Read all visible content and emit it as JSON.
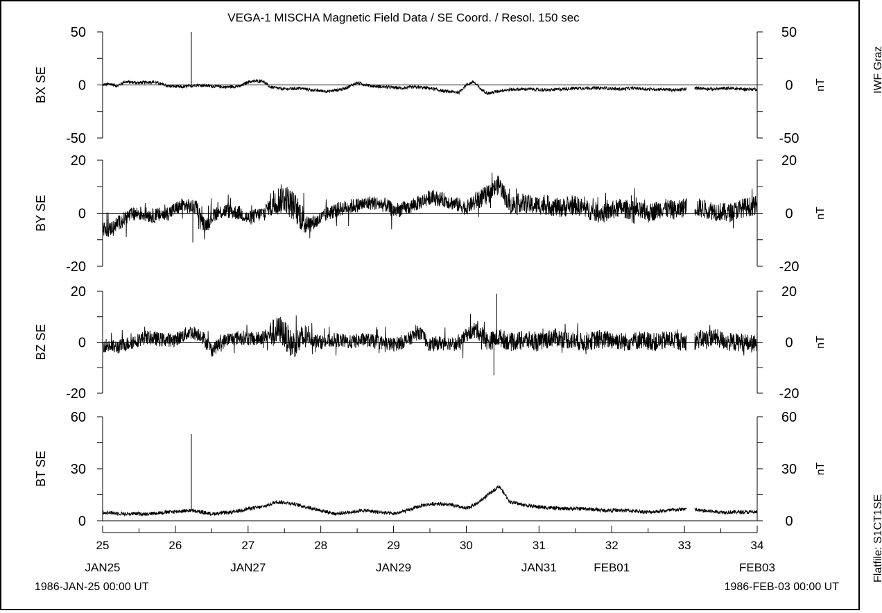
{
  "title": "VEGA-1 MISCHA Magnetic Field Data / SE Coord. / Resol. 150 sec",
  "side_label_top": "IWF Graz",
  "side_label_bottom": "Flatfile: S1CT1SE",
  "start_time": "1986-JAN-25 00:00  UT",
  "end_time": "1986-FEB-03 00:00  UT",
  "unit": "nT",
  "chart_data": {
    "type": "line",
    "title": "VEGA-1 MISCHA Magnetic Field Data / SE Coord. / Resol. 150 sec",
    "x": {
      "range": [
        25,
        34
      ],
      "ticks": [
        "25",
        "26",
        "27",
        "28",
        "29",
        "30",
        "31",
        "32",
        "33",
        "34"
      ],
      "date_labels": [
        {
          "day": 25,
          "label": "JAN25"
        },
        {
          "day": 27,
          "label": "JAN27"
        },
        {
          "day": 29,
          "label": "JAN29"
        },
        {
          "day": 31,
          "label": "JAN31"
        },
        {
          "day": 32,
          "label": "FEB01"
        },
        {
          "day": 34,
          "label": "FEB03"
        }
      ]
    },
    "panels": [
      {
        "name": "BX SE",
        "ylabel": "BX  SE",
        "unit": "nT",
        "ylim": [
          -50,
          50
        ],
        "ticks": [
          50,
          0,
          -50
        ],
        "tick_labels": [
          "50",
          "0",
          "-50"
        ],
        "minor_step": 25,
        "points": [
          [
            25.0,
            0
          ],
          [
            25.1,
            1
          ],
          [
            25.2,
            -1
          ],
          [
            25.3,
            3
          ],
          [
            25.5,
            2
          ],
          [
            25.7,
            3
          ],
          [
            25.9,
            -1
          ],
          [
            26.1,
            -2
          ],
          [
            26.3,
            0
          ],
          [
            26.5,
            -1
          ],
          [
            26.7,
            -2
          ],
          [
            26.9,
            -1
          ],
          [
            27.0,
            3
          ],
          [
            27.2,
            4
          ],
          [
            27.3,
            -2
          ],
          [
            27.5,
            -4
          ],
          [
            27.7,
            -3
          ],
          [
            27.9,
            -5
          ],
          [
            28.1,
            -6
          ],
          [
            28.3,
            -4
          ],
          [
            28.5,
            2
          ],
          [
            28.7,
            -1
          ],
          [
            28.9,
            -2
          ],
          [
            29.1,
            -3
          ],
          [
            29.3,
            -2
          ],
          [
            29.5,
            -3
          ],
          [
            29.7,
            -6
          ],
          [
            29.9,
            -7
          ],
          [
            30.0,
            0
          ],
          [
            30.1,
            3
          ],
          [
            30.2,
            -4
          ],
          [
            30.3,
            -8
          ],
          [
            30.5,
            -5
          ],
          [
            30.7,
            -4
          ],
          [
            30.9,
            -4
          ],
          [
            31.1,
            -5
          ],
          [
            31.3,
            -4
          ],
          [
            31.5,
            -3
          ],
          [
            31.7,
            -3
          ],
          [
            31.9,
            -3
          ],
          [
            32.1,
            -4
          ],
          [
            32.3,
            -3
          ],
          [
            32.5,
            -4
          ],
          [
            32.7,
            -4
          ],
          [
            32.9,
            -5
          ],
          [
            33.0,
            -4
          ],
          [
            33.2,
            -3
          ],
          [
            33.4,
            -4
          ],
          [
            33.6,
            -3
          ],
          [
            33.8,
            -4
          ],
          [
            34.0,
            -4
          ]
        ],
        "spikes": [
          [
            26.22,
            50
          ]
        ]
      },
      {
        "name": "BY SE",
        "ylabel": "BY  SE",
        "unit": "nT",
        "ylim": [
          -20,
          20
        ],
        "ticks": [
          20,
          0,
          -20
        ],
        "tick_labels": [
          "20",
          "0",
          "-20"
        ],
        "minor_step": 10,
        "points": [
          [
            25.0,
            -5
          ],
          [
            25.05,
            -7
          ],
          [
            25.2,
            -4
          ],
          [
            25.35,
            -1
          ],
          [
            25.5,
            0
          ],
          [
            25.7,
            -1
          ],
          [
            25.9,
            0
          ],
          [
            26.1,
            3
          ],
          [
            26.3,
            2
          ],
          [
            26.4,
            -5
          ],
          [
            26.55,
            0
          ],
          [
            26.7,
            1
          ],
          [
            26.9,
            0
          ],
          [
            27.0,
            -2
          ],
          [
            27.2,
            0
          ],
          [
            27.35,
            4
          ],
          [
            27.5,
            6
          ],
          [
            27.65,
            2
          ],
          [
            27.8,
            -4
          ],
          [
            27.95,
            -3
          ],
          [
            28.1,
            0
          ],
          [
            28.3,
            2
          ],
          [
            28.5,
            3
          ],
          [
            28.7,
            4
          ],
          [
            28.9,
            3
          ],
          [
            29.0,
            1
          ],
          [
            29.2,
            2
          ],
          [
            29.35,
            4
          ],
          [
            29.5,
            6
          ],
          [
            29.7,
            5
          ],
          [
            29.9,
            3
          ],
          [
            30.0,
            2
          ],
          [
            30.15,
            5
          ],
          [
            30.3,
            7
          ],
          [
            30.45,
            11
          ],
          [
            30.6,
            3
          ],
          [
            30.75,
            4
          ],
          [
            30.9,
            3
          ],
          [
            31.1,
            3
          ],
          [
            31.3,
            2
          ],
          [
            31.5,
            3
          ],
          [
            31.7,
            1
          ],
          [
            31.9,
            0
          ],
          [
            32.1,
            2
          ],
          [
            32.3,
            1
          ],
          [
            32.5,
            0
          ],
          [
            32.7,
            2
          ],
          [
            32.9,
            1
          ],
          [
            33.05,
            3
          ],
          [
            33.2,
            2
          ],
          [
            33.4,
            1
          ],
          [
            33.6,
            0
          ],
          [
            33.8,
            2
          ],
          [
            34.0,
            3
          ]
        ],
        "spikes": [
          [
            26.24,
            -11
          ]
        ]
      },
      {
        "name": "BZ SE",
        "ylabel": "BZ  SE",
        "unit": "nT",
        "ylim": [
          -20,
          20
        ],
        "ticks": [
          20,
          0,
          -20
        ],
        "tick_labels": [
          "20",
          "0",
          "-20"
        ],
        "minor_step": 10,
        "points": [
          [
            25.0,
            -1
          ],
          [
            25.2,
            -2
          ],
          [
            25.4,
            0
          ],
          [
            25.6,
            2
          ],
          [
            25.8,
            1
          ],
          [
            26.0,
            1
          ],
          [
            26.2,
            4
          ],
          [
            26.35,
            3
          ],
          [
            26.5,
            -3
          ],
          [
            26.7,
            1
          ],
          [
            26.9,
            2
          ],
          [
            27.1,
            1
          ],
          [
            27.3,
            3
          ],
          [
            27.45,
            5
          ],
          [
            27.6,
            -1
          ],
          [
            27.8,
            2
          ],
          [
            28.0,
            0
          ],
          [
            28.2,
            1
          ],
          [
            28.4,
            0
          ],
          [
            28.6,
            1
          ],
          [
            28.8,
            0
          ],
          [
            29.0,
            -1
          ],
          [
            29.2,
            1
          ],
          [
            29.35,
            4
          ],
          [
            29.5,
            -1
          ],
          [
            29.7,
            0
          ],
          [
            29.9,
            -1
          ],
          [
            30.0,
            3
          ],
          [
            30.15,
            5
          ],
          [
            30.3,
            0
          ],
          [
            30.45,
            2
          ],
          [
            30.6,
            0
          ],
          [
            30.8,
            1
          ],
          [
            31.0,
            0
          ],
          [
            31.2,
            2
          ],
          [
            31.4,
            1
          ],
          [
            31.6,
            0
          ],
          [
            31.8,
            1
          ],
          [
            32.0,
            1
          ],
          [
            32.2,
            0
          ],
          [
            32.4,
            1
          ],
          [
            32.6,
            0
          ],
          [
            32.8,
            1
          ],
          [
            33.05,
            0
          ],
          [
            33.2,
            1
          ],
          [
            33.4,
            2
          ],
          [
            33.6,
            0
          ],
          [
            33.8,
            0
          ],
          [
            34.0,
            -1
          ]
        ],
        "spikes": [
          [
            30.38,
            -13
          ],
          [
            30.42,
            19
          ]
        ]
      },
      {
        "name": "BT SE",
        "ylabel": "BT  SE",
        "unit": "nT",
        "ylim": [
          0,
          60
        ],
        "ticks": [
          60,
          30,
          0
        ],
        "tick_labels": [
          "60",
          "30",
          "0"
        ],
        "minor_step": 15,
        "points": [
          [
            25.0,
            5
          ],
          [
            25.3,
            4
          ],
          [
            25.6,
            4
          ],
          [
            25.9,
            5
          ],
          [
            26.2,
            6
          ],
          [
            26.5,
            4
          ],
          [
            26.8,
            5
          ],
          [
            27.0,
            7
          ],
          [
            27.2,
            8
          ],
          [
            27.4,
            11
          ],
          [
            27.6,
            10
          ],
          [
            27.8,
            8
          ],
          [
            28.0,
            6
          ],
          [
            28.2,
            4
          ],
          [
            28.4,
            5
          ],
          [
            28.6,
            6
          ],
          [
            28.8,
            5
          ],
          [
            29.0,
            4
          ],
          [
            29.2,
            6
          ],
          [
            29.4,
            9
          ],
          [
            29.6,
            10
          ],
          [
            29.8,
            9
          ],
          [
            30.0,
            7
          ],
          [
            30.15,
            10
          ],
          [
            30.3,
            15
          ],
          [
            30.45,
            20
          ],
          [
            30.6,
            11
          ],
          [
            30.8,
            9
          ],
          [
            31.0,
            8
          ],
          [
            31.3,
            7
          ],
          [
            31.6,
            7
          ],
          [
            31.9,
            6
          ],
          [
            32.2,
            6
          ],
          [
            32.5,
            5
          ],
          [
            32.8,
            6
          ],
          [
            33.05,
            7
          ],
          [
            33.2,
            6
          ],
          [
            33.5,
            5
          ],
          [
            33.8,
            5
          ],
          [
            34.0,
            5
          ]
        ],
        "spikes": [
          [
            26.22,
            50
          ]
        ]
      }
    ]
  }
}
